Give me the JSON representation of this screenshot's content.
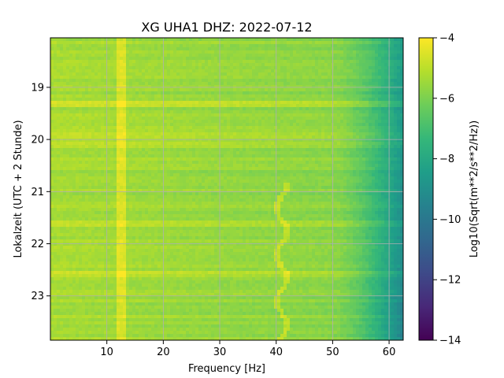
{
  "chart_data": {
    "type": "heatmap",
    "title": "XG UHA1  DHZ: 2022-07-12",
    "xlabel": "Frequency [Hz]",
    "ylabel": "Lokalzeit (UTC + 2 Stunde)",
    "x_range": [
      0,
      62.5
    ],
    "y_range": [
      18.05,
      23.85
    ],
    "y_inverted": true,
    "x_ticks": [
      10,
      20,
      30,
      40,
      50,
      60
    ],
    "y_ticks": [
      19,
      20,
      21,
      22,
      23
    ],
    "grid": true,
    "colormap": "viridis",
    "colorbar": {
      "label": "Log10(Sqrt(m**2/s**2/Hz))",
      "range": [
        -14,
        -4
      ],
      "ticks": [
        -4,
        -6,
        -8,
        -10,
        -12,
        -14
      ]
    },
    "features": {
      "persistent_line_hz": 12.5,
      "wandering_line_hz_range": [
        40,
        42
      ],
      "rolloff_start_hz": 50,
      "noisy_bands_hours": [
        19.3,
        19.9,
        20.1,
        21.6,
        22.6
      ]
    }
  }
}
